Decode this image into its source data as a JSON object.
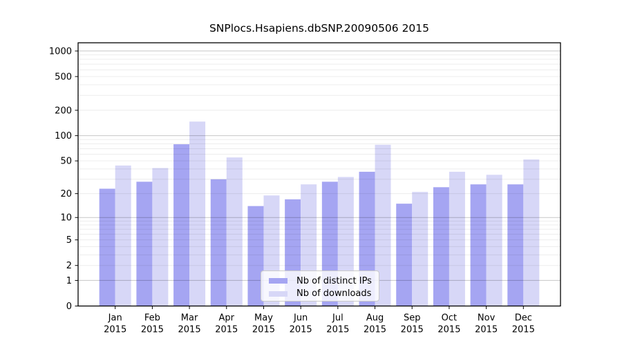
{
  "chart_data": {
    "type": "bar",
    "title": "SNPlocs.Hsapiens.dbSNP.20090506 2015",
    "months": [
      "Jan",
      "Feb",
      "Mar",
      "Apr",
      "May",
      "Jun",
      "Jul",
      "Aug",
      "Sep",
      "Oct",
      "Nov",
      "Dec"
    ],
    "year_label": "2015",
    "series": [
      {
        "name": "Nb of distinct IPs",
        "color": "#a5a5f2",
        "values": [
          23,
          28,
          79,
          30,
          14,
          17,
          28,
          37,
          15,
          24,
          26,
          26
        ]
      },
      {
        "name": "Nb of downloads",
        "color": "#d7d7f7",
        "values": [
          44,
          41,
          147,
          55,
          19,
          26,
          32,
          78,
          21,
          37,
          34,
          52
        ]
      }
    ],
    "y_scale": "log1p",
    "y_ticks": [
      0,
      1,
      2,
      5,
      10,
      20,
      50,
      100,
      200,
      500,
      1000
    ],
    "ylim": [
      0,
      1250
    ],
    "grid": {
      "major_ticks": [
        1,
        10,
        100,
        1000
      ],
      "major_color": "rgba(0,0,0,0.22)",
      "minor_color": "rgba(0,0,0,0.075)",
      "minor_multiples": [
        2,
        3,
        4,
        5,
        6,
        7,
        8,
        9
      ],
      "minor_decades": [
        1,
        10,
        100
      ]
    },
    "axes": {
      "frame_color": "#000000",
      "tick_color": "#000000"
    },
    "legend_position": "bottom-center"
  }
}
